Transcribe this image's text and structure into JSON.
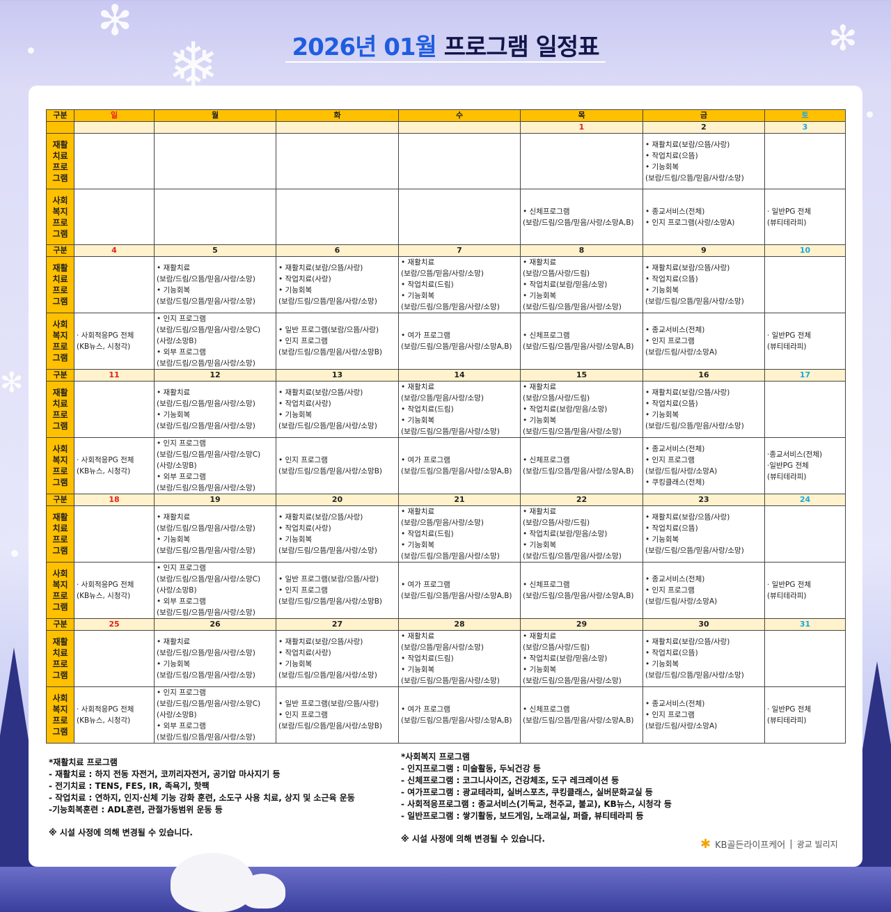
{
  "title": {
    "blue": "2026년 01월",
    "navy": "프로그램 일정표"
  },
  "colors": {
    "header": "#ffc000",
    "date_row": "#fff2cc",
    "sunday": "#e61e1e",
    "saturday": "#1aa7e0",
    "title_blue": "#1e5de0"
  },
  "header": [
    "구분",
    "일",
    "월",
    "화",
    "수",
    "목",
    "금",
    "토"
  ],
  "row_labels": {
    "date": "구분",
    "rehab": "재활\n치료\n프로\n그램",
    "social": "사회\n복지\n프로\n그램"
  },
  "weeks": [
    {
      "label": "",
      "dates": [
        "",
        "",
        "",
        "",
        "1",
        "2",
        "3"
      ],
      "holiday_dates": [
        "1"
      ],
      "rehab": [
        [],
        [],
        [],
        [],
        [],
        [
          "• 재활치료(보람/으뜸/사랑)",
          "• 작업치료(으뜸)",
          "• 기능회복",
          "(보람/드림/으뜸/믿음/사랑/소망)"
        ],
        []
      ],
      "social": [
        [],
        [],
        [],
        [],
        [
          "• 신체프로그램",
          "(보람/드림/으뜸/믿음/사랑/소망A,B)"
        ],
        [
          "• 종교서비스(전체)",
          "• 인지 프로그램(사랑/소망A)"
        ],
        [
          "· 일반PG 전체",
          "(뷰티테라피)"
        ]
      ]
    },
    {
      "label": "구분",
      "dates": [
        "4",
        "5",
        "6",
        "7",
        "8",
        "9",
        "10"
      ],
      "holiday_dates": [],
      "rehab": [
        [],
        [
          "• 재활치료",
          "(보람/드림/으뜸/믿음/사랑/소망)",
          "• 기능회복",
          "(보람/드림/으뜸/믿음/사랑/소망)"
        ],
        [
          "• 재활치료(보람/으뜸/사랑)",
          "• 작업치료(사랑)",
          "• 기능회복",
          "(보람/드림/으뜸/믿음/사랑/소망)"
        ],
        [
          "• 재활치료",
          "(보람/으뜸/믿음/사랑/소망)",
          "• 작업치료(드림)",
          "• 기능회복",
          "(보람/드림/으뜸/믿음/사랑/소망)"
        ],
        [
          "• 재활치료",
          "(보람/으뜸/사랑/드림)",
          "• 작업치료(보람/믿음/소망)",
          "• 기능회복",
          "(보람/드림/으뜸/믿음/사랑/소망)"
        ],
        [
          "• 재활치료(보람/으뜸/사랑)",
          "• 작업치료(으뜸)",
          "• 기능회복",
          "(보람/드림/으뜸/믿음/사랑/소망)"
        ],
        []
      ],
      "social": [
        [
          "· 사회적응PG 전체",
          "(KB뉴스, 시청각)"
        ],
        [
          "• 인지 프로그램",
          "(보람/드림/으뜸/믿음/사랑/소망C)",
          "(사랑/소망B)",
          "• 외부 프로그램",
          "(보람/드림/으뜸/믿음/사랑/소망)"
        ],
        [
          "• 일반 프로그램(보람/으뜸/사랑)",
          "• 인지 프로그램",
          "(보람/드림/으뜸/믿음/사랑/소망B)"
        ],
        [
          "• 여가 프로그램",
          "(보람/드림/으뜸/믿음/사랑/소망A,B)"
        ],
        [
          "• 신체프로그램",
          "(보람/드림/으뜸/믿음/사랑/소망A,B)"
        ],
        [
          "• 종교서비스(전체)",
          "• 인지 프로그램",
          "(보람/드림/사랑/소망A)"
        ],
        [
          "· 일반PG 전체",
          "(뷰티테라피)"
        ]
      ]
    },
    {
      "label": "구분",
      "dates": [
        "11",
        "12",
        "13",
        "14",
        "15",
        "16",
        "17"
      ],
      "holiday_dates": [],
      "rehab": [
        [],
        [
          "• 재활치료",
          "(보람/드림/으뜸/믿음/사랑/소망)",
          "• 기능회복",
          "(보람/드림/으뜸/믿음/사랑/소망)"
        ],
        [
          "• 재활치료(보람/으뜸/사랑)",
          "• 작업치료(사랑)",
          "• 기능회복",
          "(보람/드림/으뜸/믿음/사랑/소망)"
        ],
        [
          "• 재활치료",
          "(보람/으뜸/믿음/사랑/소망)",
          "• 작업치료(드림)",
          "• 기능회복",
          "(보람/드림/으뜸/믿음/사랑/소망)"
        ],
        [
          "• 재활치료",
          "(보람/으뜸/사랑/드림)",
          "• 작업치료(보람/믿음/소망)",
          "• 기능회복",
          "(보람/드림/으뜸/믿음/사랑/소망)"
        ],
        [
          "• 재활치료(보람/으뜸/사랑)",
          "• 작업치료(으뜸)",
          "• 기능회복",
          "(보람/드림/으뜸/믿음/사랑/소망)"
        ],
        []
      ],
      "social": [
        [
          "· 사회적응PG 전체",
          "(KB뉴스, 시청각)"
        ],
        [
          "• 인지 프로그램",
          "(보람/드림/으뜸/믿음/사랑/소망C)",
          "(사랑/소망B)",
          "• 외부 프로그램",
          "(보람/드림/으뜸/믿음/사랑/소망)"
        ],
        [
          "• 인지 프로그램",
          "(보람/드림/으뜸/믿음/사랑/소망B)"
        ],
        [
          "• 여가 프로그램",
          "(보람/드림/으뜸/믿음/사랑/소망A,B)"
        ],
        [
          "• 신체프로그램",
          "(보람/드림/으뜸/믿음/사랑/소망A,B)"
        ],
        [
          "• 종교서비스(전체)",
          "• 인지 프로그램",
          "(보람/드림/사랑/소망A)",
          "• 쿠킹클래스(전체)"
        ],
        [
          "·종교서비스(전체)",
          "·일반PG 전체",
          "(뷰티테라피)"
        ]
      ]
    },
    {
      "label": "구분",
      "dates": [
        "18",
        "19",
        "20",
        "21",
        "22",
        "23",
        "24"
      ],
      "holiday_dates": [],
      "rehab": [
        [],
        [
          "• 재활치료",
          "(보람/드림/으뜸/믿음/사랑/소망)",
          "• 기능회복",
          "(보람/드림/으뜸/믿음/사랑/소망)"
        ],
        [
          "• 재활치료(보람/으뜸/사랑)",
          "• 작업치료(사랑)",
          "• 기능회복",
          "(보람/드림/으뜸/믿음/사랑/소망)"
        ],
        [
          "• 재활치료",
          "(보람/으뜸/믿음/사랑/소망)",
          "• 작업치료(드림)",
          "• 기능회복",
          "(보람/드림/으뜸/믿음/사랑/소망)"
        ],
        [
          "• 재활치료",
          "(보람/으뜸/사랑/드림)",
          "• 작업치료(보람/믿음/소망)",
          "• 기능회복",
          "(보람/드림/으뜸/믿음/사랑/소망)"
        ],
        [
          "• 재활치료(보람/으뜸/사랑)",
          "• 작업치료(으뜸)",
          "• 기능회복",
          "(보람/드림/으뜸/믿음/사랑/소망)"
        ],
        []
      ],
      "social": [
        [
          "· 사회적응PG 전체",
          "(KB뉴스, 시청각)"
        ],
        [
          "• 인지 프로그램",
          "(보람/드림/으뜸/믿음/사랑/소망C)",
          "(사랑/소망B)",
          "• 외부 프로그램",
          "(보람/드림/으뜸/믿음/사랑/소망)"
        ],
        [
          "• 일반 프로그램(보람/으뜸/사랑)",
          "• 인지 프로그램",
          "(보람/드림/으뜸/믿음/사랑/소망B)"
        ],
        [
          "• 여가 프로그램",
          "(보람/드림/으뜸/믿음/사랑/소망A,B)"
        ],
        [
          "• 신체프로그램",
          "(보람/드림/으뜸/믿음/사랑/소망A,B)"
        ],
        [
          "• 종교서비스(전체)",
          "• 인지 프로그램",
          "(보람/드림/사랑/소망A)"
        ],
        [
          "· 일반PG 전체",
          "(뷰티테라피)"
        ]
      ]
    },
    {
      "label": "구분",
      "dates": [
        "25",
        "26",
        "27",
        "28",
        "29",
        "30",
        "31"
      ],
      "holiday_dates": [],
      "rehab": [
        [],
        [
          "• 재활치료",
          "(보람/드림/으뜸/믿음/사랑/소망)",
          "• 기능회복",
          "(보람/드림/으뜸/믿음/사랑/소망)"
        ],
        [
          "• 재활치료(보람/으뜸/사랑)",
          "• 작업치료(사랑)",
          "• 기능회복",
          "(보람/드림/으뜸/믿음/사랑/소망)"
        ],
        [
          "• 재활치료",
          "(보람/으뜸/믿음/사랑/소망)",
          "• 작업치료(드림)",
          "• 기능회복",
          "(보람/드림/으뜸/믿음/사랑/소망)"
        ],
        [
          "• 재활치료",
          "(보람/으뜸/사랑/드림)",
          "• 작업치료(보람/믿음/소망)",
          "• 기능회복",
          "(보람/드림/으뜸/믿음/사랑/소망)"
        ],
        [
          "• 재활치료(보람/으뜸/사랑)",
          "• 작업치료(으뜸)",
          "• 기능회복",
          "(보람/드림/으뜸/믿음/사랑/소망)"
        ],
        []
      ],
      "social": [
        [
          "· 사회적응PG 전체",
          "(KB뉴스, 시청각)"
        ],
        [
          "• 인지 프로그램",
          "(보람/드림/으뜸/믿음/사랑/소망C)",
          "(사랑/소망B)",
          "• 외부 프로그램",
          "(보람/드림/으뜸/믿음/사랑/소망)"
        ],
        [
          "• 일반 프로그램(보람/으뜸/사랑)",
          "• 인지 프로그램",
          "(보람/드림/으뜸/믿음/사랑/소망B)"
        ],
        [
          "• 여가 프로그램",
          "(보람/드림/으뜸/믿음/사랑/소망A,B)"
        ],
        [
          "• 신체프로그램",
          "(보람/드림/으뜸/믿음/사랑/소망A,B)"
        ],
        [
          "• 종교서비스(전체)",
          "• 인지 프로그램",
          "(보람/드림/사랑/소망A)"
        ],
        [
          "· 일반PG 전체",
          "(뷰티테라피)"
        ]
      ]
    }
  ],
  "legend_rehab": {
    "title": "*재활치료 프로그램",
    "items": [
      " - 재활치료 : 하지 전동 자전거, 코끼리자전거, 공기압 마사지기 등",
      " - 전기치료 : TENS, FES, IR, 족욕기, 핫팩",
      " - 작업치료 : 연하지, 인지·신체 기능 강화 훈련, 소도구 사용 치료, 상지 및 소근육 운동",
      " -기능회복훈련 : ADL훈련, 관절가동범위 운동 등"
    ],
    "note": "※ 시설 사정에 의해 변경될 수 있습니다."
  },
  "legend_social": {
    "title": "*사회복지 프로그램",
    "items": [
      " - 인지프로그램 : 미술활동, 두뇌건강 등",
      " - 신체프로그램 : 코그니사이즈, 건강체조, 도구 레크레이션 등",
      " - 여가프로그램 : 광교테라피, 실버스포츠, 쿠킹클래스, 실버문화교실 등",
      " - 사회적응프로그램 : 종교서비스(기독교, 천주교, 불교), KB뉴스, 시청각 등",
      " - 일반프로그램 : 쌓기활동, 보드게임, 노래교실, 퍼즐, 뷰티테라피 등"
    ],
    "note": "※ 시설 사정에 의해 변경될 수 있습니다."
  },
  "logo": {
    "brand": "KB골든라이프케어",
    "separator": "|",
    "site": "광교 빌리지"
  }
}
